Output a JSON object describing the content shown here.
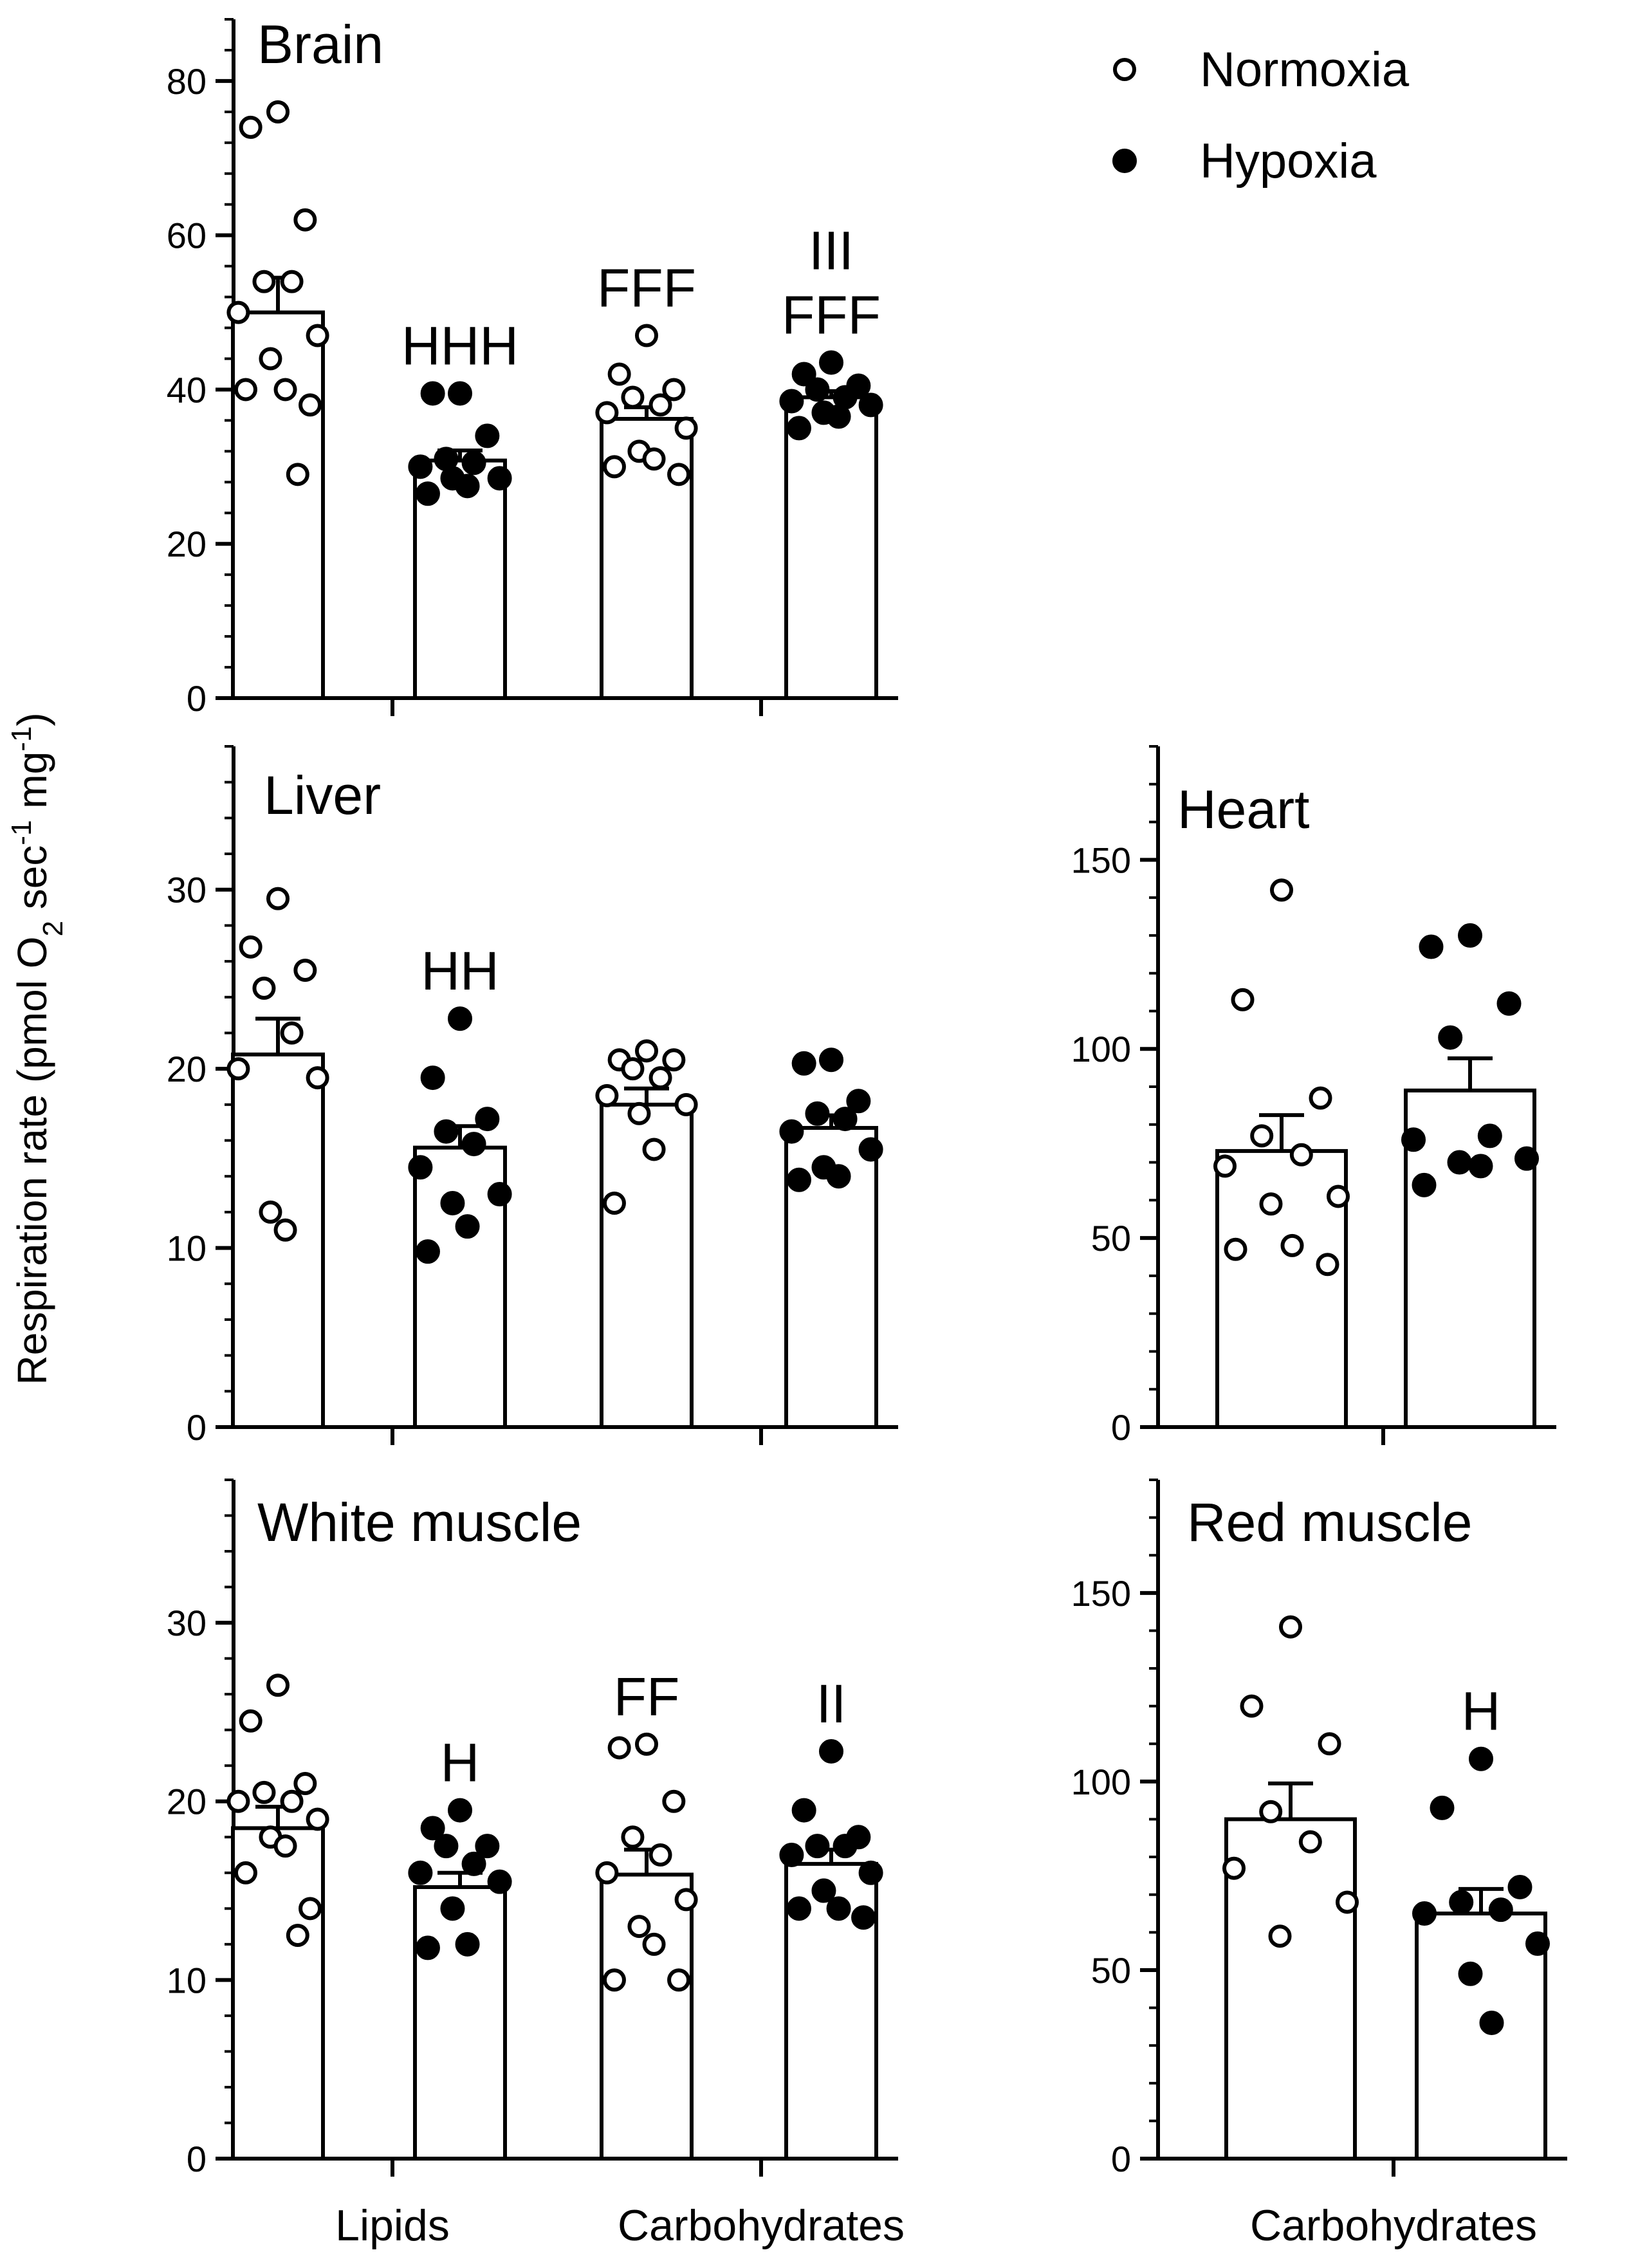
{
  "y_axis_label": {
    "main": "Respiration rate (pmol O",
    "sub2": "2",
    "mid": " sec",
    "sup1": "-1",
    "mid2": " mg",
    "sup2": "-1",
    "end": ")"
  },
  "legend": {
    "normoxia": "Normoxia",
    "hypoxia": "Hypoxia"
  },
  "x_labels": {
    "lipids": "Lipids",
    "carbohydrates_left": "Carbohydrates",
    "carbohydrates_right": "Carbohydrates"
  },
  "chart_data": [
    {
      "type": "bar",
      "title": "Brain",
      "ylim": [
        0,
        88
      ],
      "major_ticks": [
        0,
        20,
        40,
        60,
        80
      ],
      "minor_step": 4,
      "categories": [
        "Lipids",
        "Carbohydrates"
      ],
      "bars": [
        {
          "group": "Lipids",
          "condition": "Normoxia",
          "mean": 50,
          "sem": 4.5,
          "points": [
            76,
            74,
            62,
            54,
            54,
            50,
            47,
            44,
            40,
            40,
            38,
            29
          ]
        },
        {
          "group": "Lipids",
          "condition": "Hypoxia",
          "mean": 30.8,
          "sem": 1.3,
          "points": [
            39.5,
            39.5,
            34,
            31,
            30.5,
            30,
            28.5,
            28.5,
            27.5,
            26.5
          ]
        },
        {
          "group": "Carbohydrates",
          "condition": "Normoxia",
          "mean": 36.2,
          "sem": 1.5,
          "points": [
            47,
            42,
            40,
            39,
            38,
            37,
            35,
            32,
            31,
            30,
            29
          ]
        },
        {
          "group": "Carbohydrates",
          "condition": "Hypoxia",
          "mean": 39,
          "sem": 0.8,
          "points": [
            43.5,
            42,
            40.5,
            40,
            39,
            38.5,
            38,
            37,
            36.5,
            35
          ]
        }
      ],
      "annotations": [
        {
          "bar": 1,
          "lines": [
            "HHH"
          ]
        },
        {
          "bar": 2,
          "lines": [
            "FFF"
          ]
        },
        {
          "bar": 3,
          "lines": [
            "III",
            "FFF"
          ]
        }
      ]
    },
    {
      "type": "bar",
      "title": "Liver",
      "ylim": [
        0,
        38
      ],
      "major_ticks": [
        0,
        10,
        20,
        30
      ],
      "minor_step": 2,
      "categories": [
        "Lipids",
        "Carbohydrates"
      ],
      "bars": [
        {
          "group": "Lipids",
          "condition": "Normoxia",
          "mean": 20.8,
          "sem": 2.0,
          "points": [
            29.5,
            26.8,
            25.5,
            24.5,
            22,
            20,
            19.5,
            12,
            11
          ]
        },
        {
          "group": "Lipids",
          "condition": "Hypoxia",
          "mean": 15.6,
          "sem": 1.2,
          "points": [
            22.8,
            19.5,
            17.2,
            16.5,
            15.8,
            14.5,
            13,
            12.5,
            11.2,
            9.8
          ]
        },
        {
          "group": "Carbohydrates",
          "condition": "Normoxia",
          "mean": 18,
          "sem": 0.9,
          "points": [
            21,
            20.5,
            20.5,
            20,
            19.5,
            18.5,
            18,
            17.5,
            15.5,
            12.5
          ]
        },
        {
          "group": "Carbohydrates",
          "condition": "Hypoxia",
          "mean": 16.7,
          "sem": 0.7,
          "points": [
            20.5,
            20.3,
            18.2,
            17.5,
            17.2,
            16.5,
            15.5,
            14.5,
            14,
            13.8
          ]
        }
      ],
      "annotations": [
        {
          "bar": 1,
          "lines": [
            "HH"
          ]
        }
      ]
    },
    {
      "type": "bar",
      "title": "Heart",
      "ylim": [
        0,
        180
      ],
      "major_ticks": [
        0,
        50,
        100,
        150
      ],
      "minor_step": 10,
      "categories": [
        "Carbohydrates"
      ],
      "bars": [
        {
          "group": "Carbohydrates",
          "condition": "Normoxia",
          "mean": 73,
          "sem": 9.5,
          "points": [
            142,
            113,
            87,
            77,
            72,
            69,
            61,
            59,
            48,
            47,
            43
          ]
        },
        {
          "group": "Carbohydrates",
          "condition": "Hypoxia",
          "mean": 89,
          "sem": 8.5,
          "points": [
            130,
            127,
            112,
            103,
            77,
            76,
            71,
            70,
            69,
            64
          ]
        }
      ],
      "annotations": []
    },
    {
      "type": "bar",
      "title": "White muscle",
      "ylim": [
        0,
        38
      ],
      "major_ticks": [
        0,
        10,
        20,
        30
      ],
      "minor_step": 2,
      "categories": [
        "Lipids",
        "Carbohydrates"
      ],
      "bars": [
        {
          "group": "Lipids",
          "condition": "Normoxia",
          "mean": 18.5,
          "sem": 1.2,
          "points": [
            26.5,
            24.5,
            21,
            20.5,
            20,
            20,
            19,
            18,
            17.5,
            16,
            14,
            12.5
          ]
        },
        {
          "group": "Lipids",
          "condition": "Hypoxia",
          "mean": 15.2,
          "sem": 0.8,
          "points": [
            19.5,
            18.5,
            17.5,
            17.5,
            16.5,
            16,
            15.5,
            14,
            12,
            11.8
          ]
        },
        {
          "group": "Carbohydrates",
          "condition": "Normoxia",
          "mean": 15.9,
          "sem": 1.4,
          "points": [
            23.2,
            23,
            20,
            18,
            17,
            16,
            14.5,
            13,
            12,
            10,
            10
          ]
        },
        {
          "group": "Carbohydrates",
          "condition": "Hypoxia",
          "mean": 16.5,
          "sem": 0.8,
          "points": [
            22.8,
            19.5,
            18,
            17.5,
            17.5,
            17,
            16,
            15,
            14,
            14,
            13.5
          ]
        }
      ],
      "annotations": [
        {
          "bar": 1,
          "lines": [
            "H"
          ]
        },
        {
          "bar": 2,
          "lines": [
            "FF"
          ]
        },
        {
          "bar": 3,
          "lines": [
            "II"
          ]
        }
      ]
    },
    {
      "type": "bar",
      "title": "Red muscle",
      "ylim": [
        0,
        180
      ],
      "major_ticks": [
        0,
        50,
        100,
        150
      ],
      "minor_step": 10,
      "categories": [
        "Carbohydrates"
      ],
      "bars": [
        {
          "group": "Carbohydrates",
          "condition": "Normoxia",
          "mean": 90,
          "sem": 9.5,
          "points": [
            141,
            120,
            110,
            92,
            84,
            77,
            68,
            59
          ]
        },
        {
          "group": "Carbohydrates",
          "condition": "Hypoxia",
          "mean": 65,
          "sem": 6.5,
          "points": [
            106,
            93,
            72,
            68,
            66,
            65,
            57,
            49,
            36
          ]
        }
      ],
      "annotations": [
        {
          "bar": 1,
          "lines": [
            "H"
          ]
        }
      ]
    }
  ]
}
